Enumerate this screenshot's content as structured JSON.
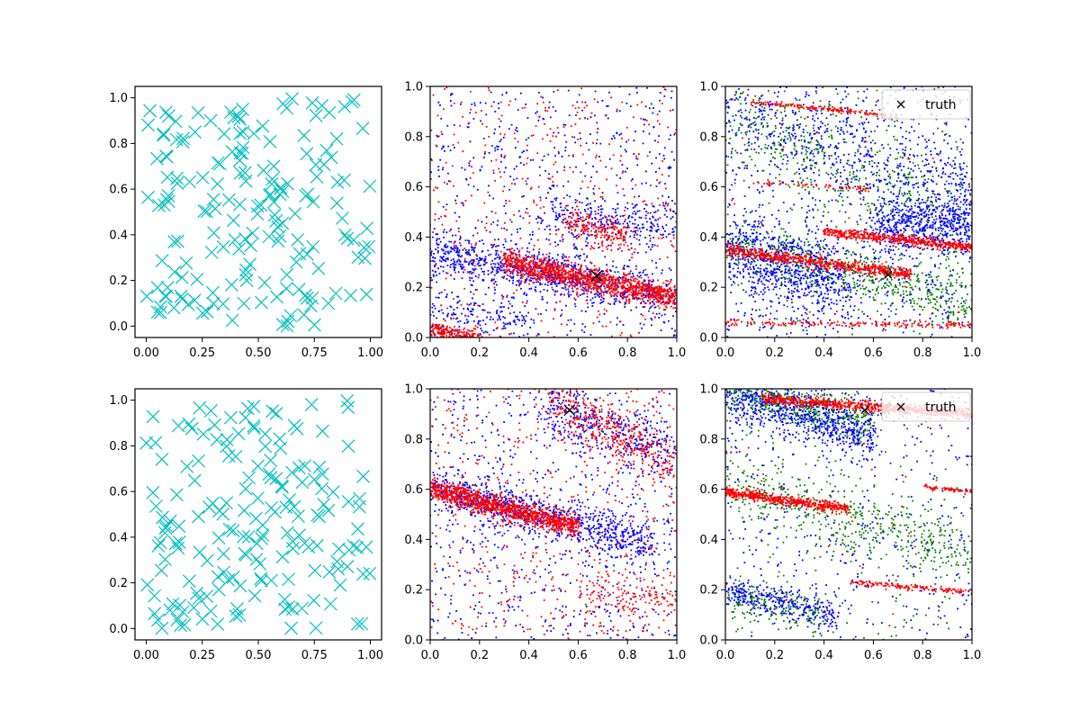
{
  "figure": {
    "colors": {
      "cyan": "#00bfbf",
      "red": "#ff0000",
      "blue": "#0000ff",
      "green": "#008000",
      "black": "#000000"
    }
  },
  "chart_data": [
    {
      "id": "top-left",
      "type": "scatter",
      "marker": "x",
      "xlim": [
        -0.05,
        1.05
      ],
      "ylim": [
        -0.05,
        1.05
      ],
      "xticks": [
        "0.00",
        "0.25",
        "0.50",
        "0.75",
        "1.00"
      ],
      "yticks": [
        "0.0",
        "0.2",
        "0.4",
        "0.6",
        "0.8",
        "1.0"
      ],
      "series": [
        {
          "name": "samples",
          "color": "#00bfbf",
          "count": 180,
          "distribution": "uniform",
          "seed": 11
        }
      ]
    },
    {
      "id": "top-middle",
      "type": "scatter",
      "marker": ".",
      "xlim": [
        0,
        1
      ],
      "ylim": [
        0,
        1
      ],
      "xticks": [
        "0.0",
        "0.2",
        "0.4",
        "0.6",
        "0.8",
        "1.0"
      ],
      "yticks": [
        "0.0",
        "0.2",
        "0.4",
        "0.6",
        "0.8",
        "1.0"
      ],
      "truth_marker": {
        "x": 0.675,
        "y": 0.245,
        "color": "#000000"
      },
      "series": [
        {
          "name": "blue",
          "color": "#0000ff",
          "seed": 21,
          "bands": [
            {
              "count": 900,
              "x0": 0.0,
              "y0": 0.34,
              "x1": 1.0,
              "y1": 0.16,
              "spread": 0.045
            },
            {
              "count": 260,
              "x0": 0.45,
              "y0": 0.5,
              "x1": 1.0,
              "y1": 0.43,
              "spread": 0.04
            },
            {
              "count": 160,
              "x0": 0.0,
              "y0": 0.1,
              "x1": 0.4,
              "y1": 0.06,
              "spread": 0.05
            }
          ],
          "uniform": 650
        },
        {
          "name": "red",
          "color": "#ff0000",
          "seed": 22,
          "bands": [
            {
              "count": 1200,
              "x0": 0.3,
              "y0": 0.3,
              "x1": 1.0,
              "y1": 0.16,
              "spread": 0.025
            },
            {
              "count": 220,
              "x0": 0.0,
              "y0": 0.03,
              "x1": 0.2,
              "y1": 0.0,
              "spread": 0.015
            },
            {
              "count": 200,
              "x0": 0.55,
              "y0": 0.46,
              "x1": 0.8,
              "y1": 0.4,
              "spread": 0.03
            }
          ],
          "uniform": 450
        }
      ]
    },
    {
      "id": "top-right",
      "type": "scatter",
      "marker": ".",
      "xlim": [
        0,
        1
      ],
      "ylim": [
        0,
        1
      ],
      "xticks": [
        "0.0",
        "0.2",
        "0.4",
        "0.6",
        "0.8",
        "1.0"
      ],
      "yticks": [
        "0.0",
        "0.2",
        "0.4",
        "0.6",
        "0.8",
        "1.0"
      ],
      "legend": {
        "label": "truth",
        "position": "upper right"
      },
      "truth_marker": {
        "x": 0.66,
        "y": 0.25,
        "color": "#000000"
      },
      "series": [
        {
          "name": "green",
          "color": "#008000",
          "seed": 31,
          "bands": [
            {
              "count": 600,
              "x0": 0.0,
              "y0": 0.38,
              "x1": 1.0,
              "y1": 0.13,
              "spread": 0.05
            },
            {
              "count": 500,
              "x0": 0.0,
              "y0": 0.9,
              "x1": 1.0,
              "y1": 0.45,
              "spread": 0.1
            }
          ],
          "uniform": 250
        },
        {
          "name": "blue",
          "color": "#0000ff",
          "seed": 32,
          "bands": [
            {
              "count": 700,
              "x0": 0.0,
              "y0": 0.35,
              "x1": 0.5,
              "y1": 0.2,
              "spread": 0.08
            },
            {
              "count": 600,
              "x0": 0.6,
              "y0": 0.45,
              "x1": 1.0,
              "y1": 0.45,
              "spread": 0.06
            },
            {
              "count": 400,
              "x0": 0.0,
              "y0": 0.9,
              "x1": 1.0,
              "y1": 0.6,
              "spread": 0.08
            }
          ],
          "uniform": 700
        },
        {
          "name": "red",
          "color": "#ff0000",
          "seed": 33,
          "bands": [
            {
              "count": 600,
              "x0": 0.0,
              "y0": 0.35,
              "x1": 0.75,
              "y1": 0.25,
              "spread": 0.012
            },
            {
              "count": 500,
              "x0": 0.4,
              "y0": 0.42,
              "x1": 1.0,
              "y1": 0.36,
              "spread": 0.01
            },
            {
              "count": 180,
              "x0": 0.0,
              "y0": 0.06,
              "x1": 1.0,
              "y1": 0.05,
              "spread": 0.006
            },
            {
              "count": 160,
              "x0": 0.1,
              "y0": 0.94,
              "x1": 0.7,
              "y1": 0.88,
              "spread": 0.005
            },
            {
              "count": 60,
              "x0": 0.1,
              "y0": 0.62,
              "x1": 0.6,
              "y1": 0.59,
              "spread": 0.005
            }
          ],
          "uniform": 40
        }
      ]
    },
    {
      "id": "bottom-left",
      "type": "scatter",
      "marker": "x",
      "xlim": [
        -0.05,
        1.05
      ],
      "ylim": [
        -0.05,
        1.05
      ],
      "xticks": [
        "0.00",
        "0.25",
        "0.50",
        "0.75",
        "1.00"
      ],
      "yticks": [
        "0.0",
        "0.2",
        "0.4",
        "0.6",
        "0.8",
        "1.0"
      ],
      "series": [
        {
          "name": "samples",
          "color": "#00bfbf",
          "count": 180,
          "distribution": "uniform",
          "seed": 12
        }
      ]
    },
    {
      "id": "bottom-middle",
      "type": "scatter",
      "marker": ".",
      "xlim": [
        0,
        1
      ],
      "ylim": [
        0,
        1
      ],
      "xticks": [
        "0.0",
        "0.2",
        "0.4",
        "0.6",
        "0.8",
        "1.0"
      ],
      "yticks": [
        "0.0",
        "0.2",
        "0.4",
        "0.6",
        "0.8",
        "1.0"
      ],
      "truth_marker": {
        "x": 0.565,
        "y": 0.915,
        "color": "#000000"
      },
      "series": [
        {
          "name": "blue",
          "color": "#0000ff",
          "seed": 41,
          "bands": [
            {
              "count": 900,
              "x0": 0.0,
              "y0": 0.61,
              "x1": 0.9,
              "y1": 0.38,
              "spread": 0.04
            },
            {
              "count": 400,
              "x0": 0.45,
              "y0": 0.95,
              "x1": 1.0,
              "y1": 0.72,
              "spread": 0.06
            }
          ],
          "uniform": 650
        },
        {
          "name": "red",
          "color": "#ff0000",
          "seed": 42,
          "bands": [
            {
              "count": 1100,
              "x0": 0.0,
              "y0": 0.6,
              "x1": 0.6,
              "y1": 0.45,
              "spread": 0.022
            },
            {
              "count": 400,
              "x0": 0.5,
              "y0": 0.95,
              "x1": 1.0,
              "y1": 0.7,
              "spread": 0.05
            },
            {
              "count": 150,
              "x0": 0.6,
              "y0": 0.2,
              "x1": 1.0,
              "y1": 0.15,
              "spread": 0.05
            }
          ],
          "uniform": 500
        }
      ]
    },
    {
      "id": "bottom-right",
      "type": "scatter",
      "marker": ".",
      "xlim": [
        0,
        1
      ],
      "ylim": [
        0,
        1
      ],
      "xticks": [
        "0.0",
        "0.2",
        "0.4",
        "0.6",
        "0.8",
        "1.0"
      ],
      "yticks": [
        "0.0",
        "0.2",
        "0.4",
        "0.6",
        "0.8",
        "1.0"
      ],
      "legend": {
        "label": "truth",
        "position": "upper right"
      },
      "truth_marker": {
        "x": 0.565,
        "y": 0.915,
        "color": "#000000"
      },
      "series": [
        {
          "name": "green",
          "color": "#008000",
          "seed": 51,
          "bands": [
            {
              "count": 500,
              "x0": 0.0,
              "y0": 0.99,
              "x1": 0.6,
              "y1": 0.86,
              "spread": 0.04
            },
            {
              "count": 500,
              "x0": 0.0,
              "y0": 0.6,
              "x1": 1.0,
              "y1": 0.35,
              "spread": 0.07
            },
            {
              "count": 200,
              "x0": 0.0,
              "y0": 0.17,
              "x1": 0.4,
              "y1": 0.1,
              "spread": 0.04
            }
          ],
          "uniform": 200
        },
        {
          "name": "blue",
          "color": "#0000ff",
          "seed": 52,
          "bands": [
            {
              "count": 700,
              "x0": 0.0,
              "y0": 0.98,
              "x1": 0.6,
              "y1": 0.82,
              "spread": 0.05
            },
            {
              "count": 300,
              "x0": 0.0,
              "y0": 0.2,
              "x1": 0.45,
              "y1": 0.1,
              "spread": 0.03
            }
          ],
          "uniform": 400
        },
        {
          "name": "red",
          "color": "#ff0000",
          "seed": 53,
          "bands": [
            {
              "count": 700,
              "x0": 0.15,
              "y0": 0.96,
              "x1": 1.0,
              "y1": 0.9,
              "spread": 0.01
            },
            {
              "count": 500,
              "x0": 0.0,
              "y0": 0.59,
              "x1": 0.5,
              "y1": 0.52,
              "spread": 0.01
            },
            {
              "count": 150,
              "x0": 0.5,
              "y0": 0.23,
              "x1": 1.0,
              "y1": 0.19,
              "spread": 0.006
            },
            {
              "count": 60,
              "x0": 0.8,
              "y0": 0.61,
              "x1": 1.0,
              "y1": 0.59,
              "spread": 0.004
            }
          ],
          "uniform": 30
        }
      ]
    }
  ]
}
